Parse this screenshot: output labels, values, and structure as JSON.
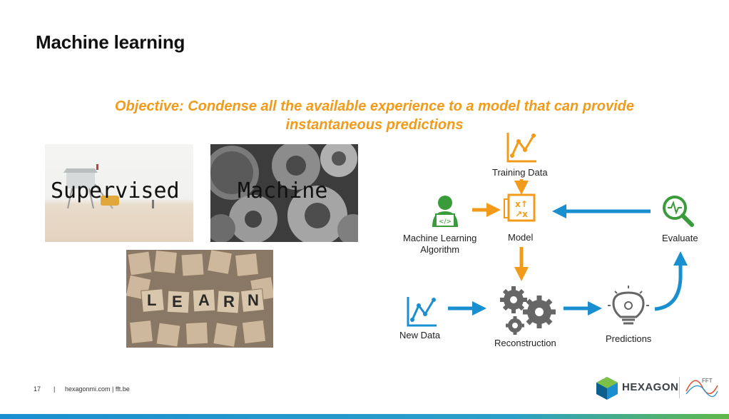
{
  "slide": {
    "title": "Machine learning",
    "objective_line1": "Objective: Condense all the available experience to a model that can provide",
    "objective_line2": "instantaneous predictions"
  },
  "images": {
    "beach_caption": "Supervised",
    "gears_caption": "Machine",
    "learn_tiles": [
      "L",
      "E",
      "A",
      "R",
      "N"
    ]
  },
  "diagram": {
    "training_data": "Training Data",
    "ml_algorithm_line1": "Machine Learning",
    "ml_algorithm_line2": "Algorithm",
    "model": "Model",
    "evaluate": "Evaluate",
    "new_data": "New Data",
    "reconstruction": "Reconstruction",
    "predictions": "Predictions"
  },
  "footer": {
    "page_number": "17",
    "separator": "|",
    "site": "hexagonmi.com | fft.be",
    "brand": "HEXAGON",
    "partner_logo_text": "FFT"
  },
  "colors": {
    "accent_orange": "#f29b1b",
    "arrow_blue": "#1a8fd0",
    "icon_green": "#3a9b3a",
    "gear_gray": "#666666"
  }
}
